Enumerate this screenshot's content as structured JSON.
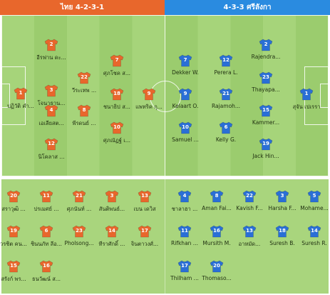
{
  "header": {
    "home_title": "ไทย 4-2-3-1",
    "away_title": "4-3-3 ศรีลังกา"
  },
  "colors": {
    "home_shirt": "#e8672c",
    "away_shirt": "#2a6fd6",
    "pitch_light": "#a6d47a",
    "pitch_dark": "#9bcc6e"
  },
  "home_lineup": [
    {
      "number": "1",
      "name": "ปฏิวัติ คำ..."
    },
    {
      "number": "2",
      "name": "อีรฟาน ดะ..."
    },
    {
      "number": "3",
      "name": "โจนาธาน..."
    },
    {
      "number": "4",
      "name": "เอเลียสต..."
    },
    {
      "number": "12",
      "name": "นิโคลาส ..."
    },
    {
      "number": "22",
      "name": "วีระเทพ ..."
    },
    {
      "number": "8",
      "name": "พีรดนย์ ..."
    },
    {
      "number": "7",
      "name": "ศุภโชค ส..."
    },
    {
      "number": "18",
      "name": "ชนาธิป ส..."
    },
    {
      "number": "10",
      "name": "ศุภณัฏฐ์ เ..."
    },
    {
      "number": "9",
      "name": "แพทริค กุ..."
    }
  ],
  "away_lineup": [
    {
      "number": "7",
      "name": "Dekker W."
    },
    {
      "number": "9",
      "name": "Kelaart O."
    },
    {
      "number": "10",
      "name": "Samuel ..."
    },
    {
      "number": "12",
      "name": "Perera L."
    },
    {
      "number": "21",
      "name": "Rajamoh..."
    },
    {
      "number": "6",
      "name": "Kelly G."
    },
    {
      "number": "2",
      "name": "Rajendra..."
    },
    {
      "number": "23",
      "name": "Thayapa..."
    },
    {
      "number": "15",
      "name": "Kammer..."
    },
    {
      "number": "19",
      "name": "Jack Hin..."
    },
    {
      "number": "1",
      "name": "สุจัน เปเรรา"
    }
  ],
  "home_bench": [
    {
      "number": "20",
      "name": "สราวุฒิ ..."
    },
    {
      "number": "11",
      "name": "ปรเมศย์ ..."
    },
    {
      "number": "21",
      "name": "ศุภนันท์ ..."
    },
    {
      "number": "3",
      "name": "สันติพนธ์..."
    },
    {
      "number": "13",
      "name": "เบน เดวิส"
    },
    {
      "number": "19",
      "name": "วรชิต คน..."
    },
    {
      "number": "6",
      "name": "ชินนภัท ลีอ..."
    },
    {
      "number": "23",
      "name": "Pholsong..."
    },
    {
      "number": "14",
      "name": "ทีราศักดิ์ ..."
    },
    {
      "number": "17",
      "name": "จินตาวงศ์..."
    },
    {
      "number": "15",
      "name": "สรังก์ พร..."
    },
    {
      "number": "16",
      "name": "ธนวัฒน์ ส..."
    }
  ],
  "away_bench": [
    {
      "number": "4",
      "name": "ชาลาฮา ..."
    },
    {
      "number": "8",
      "name": "Aman Fai..."
    },
    {
      "number": "22",
      "name": "Kavish F..."
    },
    {
      "number": "3",
      "name": "Harsha F..."
    },
    {
      "number": "5",
      "name": "Mohame..."
    },
    {
      "number": "11",
      "name": "Rifkhan ..."
    },
    {
      "number": "16",
      "name": "Mursith M."
    },
    {
      "number": "13",
      "name": "อาหมัด..."
    },
    {
      "number": "18",
      "name": "Suresh B."
    },
    {
      "number": "14",
      "name": "Suresh R."
    },
    {
      "number": "17",
      "name": "Thilham ..."
    },
    {
      "number": "20",
      "name": "Thomaso..."
    }
  ]
}
